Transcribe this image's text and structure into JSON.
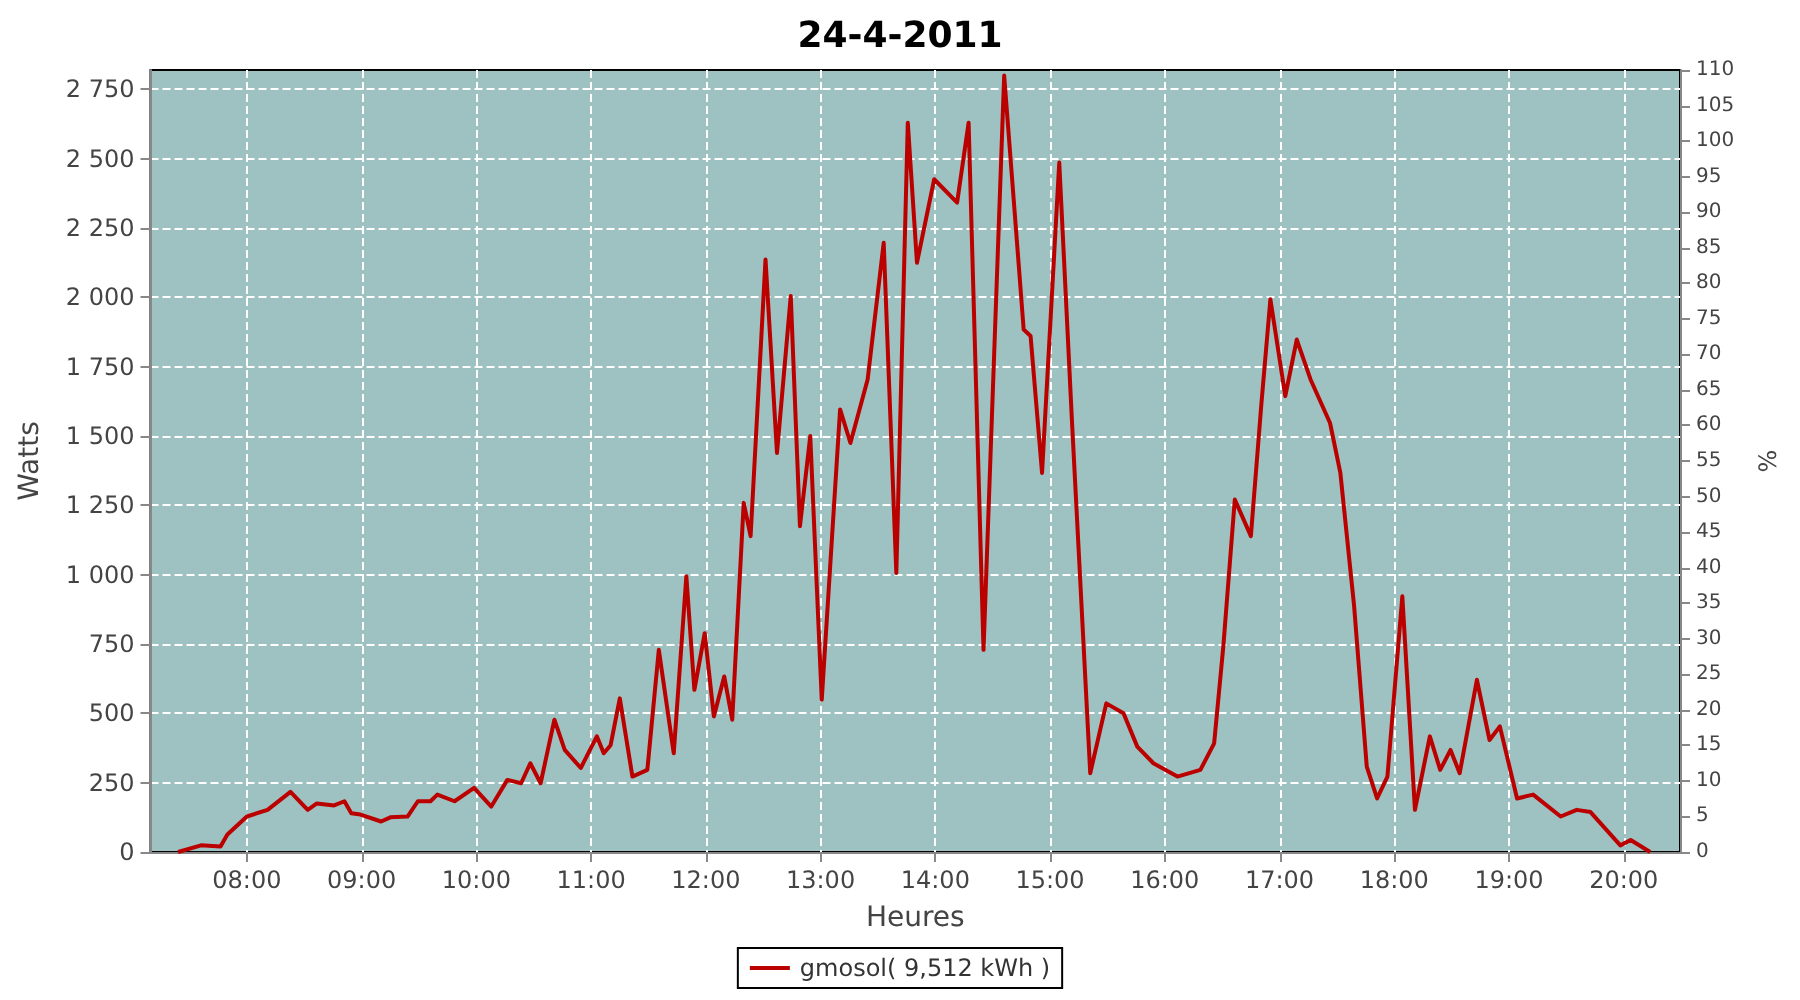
{
  "chart_data": {
    "type": "line",
    "title": "24-4-2011",
    "xlabel": "Heures",
    "ylabel": "Watts",
    "y2label": "%",
    "xlim": [
      7.16,
      20.49
    ],
    "ylim": [
      0,
      2820
    ],
    "y2lim": [
      0,
      110
    ],
    "xticks": [
      {
        "value": 8,
        "label": "08:00"
      },
      {
        "value": 9,
        "label": "09:00"
      },
      {
        "value": 10,
        "label": "10:00"
      },
      {
        "value": 11,
        "label": "11:00"
      },
      {
        "value": 12,
        "label": "12:00"
      },
      {
        "value": 13,
        "label": "13:00"
      },
      {
        "value": 14,
        "label": "14:00"
      },
      {
        "value": 15,
        "label": "15:00"
      },
      {
        "value": 16,
        "label": "16:00"
      },
      {
        "value": 17,
        "label": "17:00"
      },
      {
        "value": 18,
        "label": "18:00"
      },
      {
        "value": 19,
        "label": "19:00"
      },
      {
        "value": 20,
        "label": "20:00"
      }
    ],
    "yticks": [
      0,
      250,
      500,
      750,
      {
        "value": 1000,
        "label": "1 000"
      },
      {
        "value": 1250,
        "label": "1 250"
      },
      {
        "value": 1500,
        "label": "1 500"
      },
      {
        "value": 1750,
        "label": "1 750"
      },
      {
        "value": 2000,
        "label": "2 000"
      },
      {
        "value": 2250,
        "label": "2 250"
      },
      {
        "value": 2500,
        "label": "2 500"
      },
      {
        "value": 2750,
        "label": "2 750"
      }
    ],
    "y2ticks": [
      0,
      5,
      10,
      15,
      20,
      25,
      30,
      35,
      40,
      45,
      50,
      55,
      60,
      65,
      70,
      75,
      80,
      85,
      90,
      95,
      100,
      105,
      110
    ],
    "grid": true,
    "legend": "bottom",
    "marker": "none",
    "line_style": "solid",
    "series": [
      {
        "name": "gmosol( 9,512 kWh )",
        "color": "#bb0000",
        "x": [
          7.4,
          7.6,
          7.77,
          7.83,
          8.0,
          8.18,
          8.38,
          8.53,
          8.61,
          8.76,
          8.85,
          8.91,
          8.99,
          9.17,
          9.25,
          9.4,
          9.49,
          9.6,
          9.66,
          9.81,
          9.98,
          10.13,
          10.27,
          10.39,
          10.47,
          10.56,
          10.68,
          10.77,
          10.91,
          11.05,
          11.11,
          11.17,
          11.25,
          11.36,
          11.49,
          11.59,
          11.72,
          11.83,
          11.9,
          11.99,
          12.07,
          12.16,
          12.23,
          12.33,
          12.39,
          12.52,
          12.62,
          12.74,
          12.82,
          12.91,
          13.01,
          13.17,
          13.26,
          13.41,
          13.55,
          13.66,
          13.76,
          13.84,
          13.99,
          14.19,
          14.29,
          14.42,
          14.6,
          14.77,
          14.83,
          14.93,
          15.08,
          15.19,
          15.35,
          15.49,
          15.64,
          15.76,
          15.9,
          16.11,
          16.31,
          16.43,
          16.51,
          16.61,
          16.75,
          16.84,
          16.92,
          17.05,
          17.15,
          17.27,
          17.44,
          17.53,
          17.65,
          17.76,
          17.85,
          17.94,
          18.07,
          18.18,
          18.31,
          18.4,
          18.49,
          18.57,
          18.72,
          18.83,
          18.92,
          19.07,
          19.21,
          19.45,
          19.59,
          19.71,
          19.97,
          20.06,
          20.23
        ],
        "values": [
          0,
          24,
          20,
          63,
          128,
          152,
          217,
          152,
          175,
          168,
          183,
          140,
          135,
          110,
          125,
          128,
          183,
          183,
          207,
          183,
          231,
          164,
          260,
          248,
          320,
          248,
          477,
          368,
          303,
          417,
          356,
          385,
          554,
          272,
          296,
          729,
          356,
          994,
          585,
          789,
          489,
          633,
          477,
          1259,
          1139,
          2137,
          1439,
          2005,
          1175,
          1500,
          549,
          1596,
          1475,
          1704,
          2197,
          1006,
          2630,
          2125,
          2426,
          2342,
          2630,
          729,
          2800,
          1884,
          1861,
          1367,
          2486,
          1560,
          284,
          536,
          500,
          380,
          320,
          272,
          296,
          392,
          742,
          1271,
          1139,
          1608,
          1993,
          1644,
          1848,
          1704,
          1547,
          1367,
          886,
          308,
          193,
          272,
          922,
          152,
          417,
          296,
          368,
          284,
          621,
          404,
          453,
          193,
          207,
          128,
          152,
          144,
          24,
          43,
          0
        ]
      }
    ]
  }
}
